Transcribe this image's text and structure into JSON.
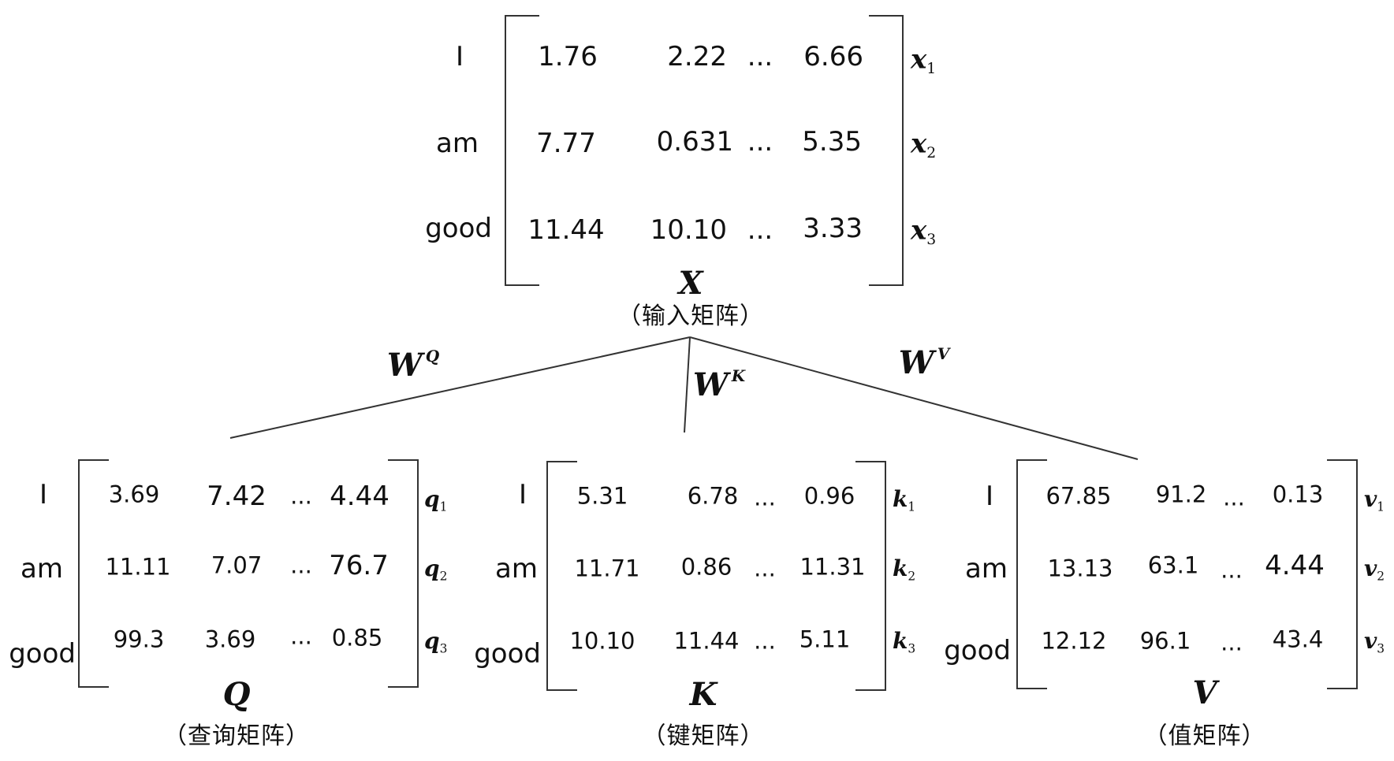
{
  "input_matrix": {
    "rows": [
      {
        "word": "I",
        "values": [
          "1.76",
          "2.22",
          "...",
          "6.66"
        ],
        "vector": "x",
        "sub": "1"
      },
      {
        "word": "am",
        "values": [
          "7.77",
          "0.631",
          "...",
          "5.35"
        ],
        "vector": "x",
        "sub": "2"
      },
      {
        "word": "good",
        "values": [
          "11.44",
          "10.10",
          "...",
          "3.33"
        ],
        "vector": "x",
        "sub": "3"
      }
    ],
    "name": "X",
    "caption": "（输入矩阵）"
  },
  "weights": [
    {
      "base": "W",
      "sup": "Q"
    },
    {
      "base": "W",
      "sup": "K"
    },
    {
      "base": "W",
      "sup": "V"
    }
  ],
  "matrices": [
    {
      "name": "Q",
      "caption": "（查询矩阵）",
      "rows": [
        {
          "word": "I",
          "values": [
            "3.69",
            "7.42",
            "...",
            "4.44"
          ],
          "vector": "q",
          "sub": "1"
        },
        {
          "word": "am",
          "values": [
            "11.11",
            "7.07",
            "...",
            "76.7"
          ],
          "vector": "q",
          "sub": "2"
        },
        {
          "word": "good",
          "values": [
            "99.3",
            "3.69",
            "...",
            "0.85"
          ],
          "vector": "q",
          "sub": "3"
        }
      ]
    },
    {
      "name": "K",
      "caption": "（键矩阵）",
      "rows": [
        {
          "word": "I",
          "values": [
            "5.31",
            "6.78",
            "...",
            "0.96"
          ],
          "vector": "k",
          "sub": "1"
        },
        {
          "word": "am",
          "values": [
            "11.71",
            "0.86",
            "...",
            "11.31"
          ],
          "vector": "k",
          "sub": "2"
        },
        {
          "word": "good",
          "values": [
            "10.10",
            "11.44",
            "...",
            "5.11"
          ],
          "vector": "k",
          "sub": "3"
        }
      ]
    },
    {
      "name": "V",
      "caption": "（值矩阵）",
      "rows": [
        {
          "word": "I",
          "values": [
            "67.85",
            "91.2",
            "...",
            "0.13"
          ],
          "vector": "v",
          "sub": "1"
        },
        {
          "word": "am",
          "values": [
            "13.13",
            "63.1",
            "...",
            "4.44"
          ],
          "vector": "v",
          "sub": "2"
        },
        {
          "word": "good",
          "values": [
            "12.12",
            "96.1",
            "...",
            "43.4"
          ],
          "vector": "v",
          "sub": "3"
        }
      ]
    }
  ]
}
